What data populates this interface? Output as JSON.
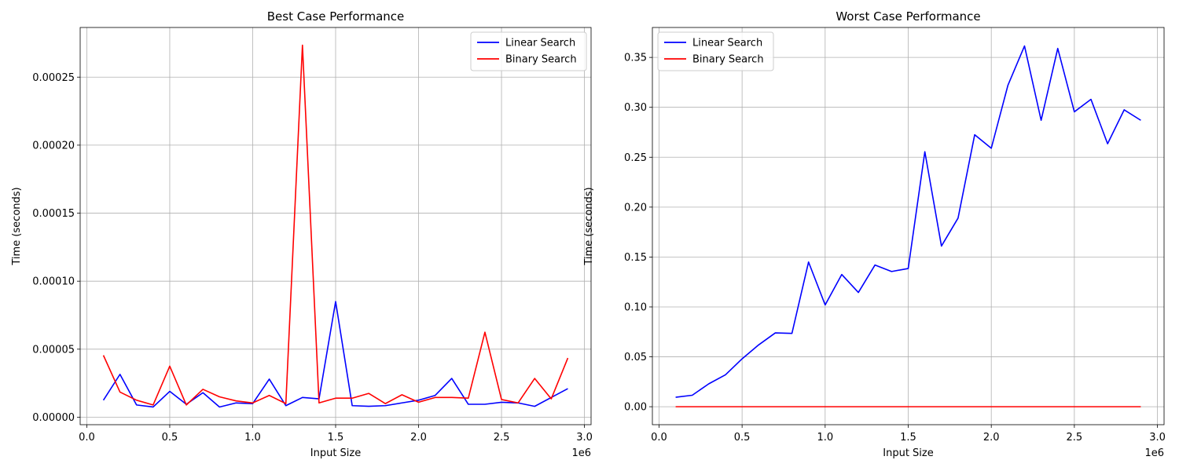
{
  "chart_data": [
    {
      "type": "line",
      "title": "Best Case Performance",
      "xlabel": "Input Size",
      "ylabel": "Time (seconds)",
      "x_offset_label": "1e6",
      "xlim": [
        -0.04,
        3.04
      ],
      "ylim": [
        -5.5e-06,
        0.0002865
      ],
      "xticks": [
        0.0,
        0.5,
        1.0,
        1.5,
        2.0,
        2.5,
        3.0
      ],
      "xtick_labels": [
        "0.0",
        "0.5",
        "1.0",
        "1.5",
        "2.0",
        "2.5",
        "3.0"
      ],
      "yticks": [
        0.0,
        5e-05,
        0.0001,
        0.00015,
        0.0002,
        0.00025
      ],
      "ytick_labels": [
        "0.00000",
        "0.00005",
        "0.00010",
        "0.00015",
        "0.00020",
        "0.00025"
      ],
      "grid": true,
      "legend_position": "top-right",
      "x": [
        0.1,
        0.2,
        0.3,
        0.4,
        0.5,
        0.6,
        0.7,
        0.8,
        0.9,
        1.0,
        1.1,
        1.2,
        1.3,
        1.4,
        1.5,
        1.6,
        1.7,
        1.8,
        1.9,
        2.0,
        2.1,
        2.2,
        2.3,
        2.4,
        2.5,
        2.6,
        2.7,
        2.8,
        2.9
      ],
      "series": [
        {
          "name": "Linear Search",
          "color": "#0000ff",
          "values": [
            1.25e-05,
            3.15e-05,
            9e-06,
            7.5e-06,
            1.9e-05,
            9.5e-06,
            1.8e-05,
            7.5e-06,
            1.05e-05,
            1e-05,
            2.8e-05,
            8.5e-06,
            1.45e-05,
            1.35e-05,
            8.5e-05,
            8.5e-06,
            8e-06,
            8.5e-06,
            1.05e-05,
            1.25e-05,
            1.6e-05,
            2.85e-05,
            9.5e-06,
            9.5e-06,
            1.1e-05,
            1.05e-05,
            8e-06,
            1.45e-05,
            2.1e-05
          ]
        },
        {
          "name": "Binary Search",
          "color": "#ff0000",
          "values": [
            4.55e-05,
            1.85e-05,
            1.25e-05,
            9e-06,
            3.75e-05,
            9e-06,
            2.05e-05,
            1.5e-05,
            1.2e-05,
            1.05e-05,
            1.6e-05,
            1e-05,
            0.0002735,
            1.05e-05,
            1.4e-05,
            1.4e-05,
            1.75e-05,
            1e-05,
            1.65e-05,
            1.1e-05,
            1.45e-05,
            1.45e-05,
            1.4e-05,
            6.25e-05,
            1.3e-05,
            1.05e-05,
            2.85e-05,
            1.35e-05,
            4.35e-05
          ]
        }
      ]
    },
    {
      "type": "line",
      "title": "Worst Case Performance",
      "xlabel": "Input Size",
      "ylabel": "Time (seconds)",
      "x_offset_label": "1e6",
      "xlim": [
        -0.04,
        3.04
      ],
      "ylim": [
        -0.018,
        0.38
      ],
      "xticks": [
        0.0,
        0.5,
        1.0,
        1.5,
        2.0,
        2.5,
        3.0
      ],
      "xtick_labels": [
        "0.0",
        "0.5",
        "1.0",
        "1.5",
        "2.0",
        "2.5",
        "3.0"
      ],
      "yticks": [
        0.0,
        0.05,
        0.1,
        0.15,
        0.2,
        0.25,
        0.3,
        0.35
      ],
      "ytick_labels": [
        "0.00",
        "0.05",
        "0.10",
        "0.15",
        "0.20",
        "0.25",
        "0.30",
        "0.35"
      ],
      "grid": true,
      "legend_position": "top-left",
      "x": [
        0.1,
        0.2,
        0.3,
        0.4,
        0.5,
        0.6,
        0.7,
        0.8,
        0.9,
        1.0,
        1.1,
        1.2,
        1.3,
        1.4,
        1.5,
        1.6,
        1.7,
        1.8,
        1.9,
        2.0,
        2.1,
        2.2,
        2.3,
        2.4,
        2.5,
        2.6,
        2.7,
        2.8,
        2.9
      ],
      "series": [
        {
          "name": "Linear Search",
          "color": "#0000ff",
          "values": [
            0.0095,
            0.0115,
            0.023,
            0.032,
            0.048,
            0.062,
            0.074,
            0.0735,
            0.145,
            0.102,
            0.1325,
            0.1145,
            0.142,
            0.1355,
            0.1385,
            0.2555,
            0.161,
            0.189,
            0.2725,
            0.259,
            0.322,
            0.3615,
            0.287,
            0.359,
            0.2955,
            0.308,
            0.2635,
            0.2975,
            0.287
          ]
        },
        {
          "name": "Binary Search",
          "color": "#ff0000",
          "values": [
            0.0,
            0.0,
            0.0,
            0.0,
            0.0,
            0.0,
            0.0,
            0.0,
            0.0,
            0.0,
            0.0,
            0.0,
            0.0,
            0.0,
            0.0,
            0.0,
            0.0,
            0.0,
            0.0,
            0.0,
            0.0,
            0.0,
            0.0,
            0.0,
            0.0,
            0.0,
            0.0,
            0.0,
            0.0
          ]
        }
      ]
    }
  ]
}
